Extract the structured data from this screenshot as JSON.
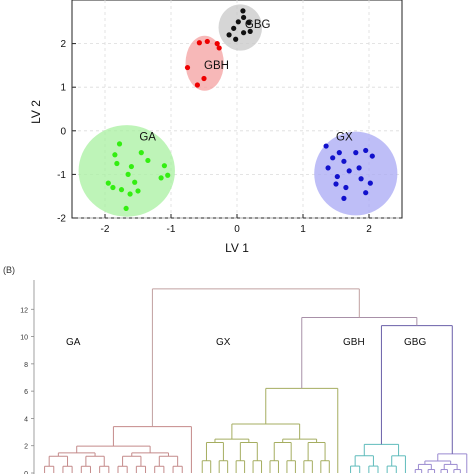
{
  "chart_data": [
    {
      "type": "scatter",
      "title": "",
      "xlabel": "LV 1",
      "ylabel": "LV 2",
      "xlim": [
        -2.5,
        2.5
      ],
      "ylim": [
        -2.0,
        3.0
      ],
      "x_ticks": [
        "-2",
        "-1",
        "0",
        "1",
        "2"
      ],
      "y_ticks": [
        "-2",
        "-1",
        "0",
        "1",
        "2"
      ],
      "grid": true,
      "groups": [
        {
          "label": "GBG",
          "point_color": "#111111",
          "ellipse_color": "#c8c8c8",
          "ellipse": {
            "cx": 0.05,
            "cy": 2.37,
            "rx": 0.33,
            "ry": 0.53
          },
          "points": [
            [
              0.09,
              2.75
            ],
            [
              0.1,
              2.6
            ],
            [
              0.02,
              2.5
            ],
            [
              0.18,
              2.48
            ],
            [
              -0.05,
              2.35
            ],
            [
              0.1,
              2.25
            ],
            [
              0.2,
              2.28
            ],
            [
              -0.12,
              2.2
            ],
            [
              -0.02,
              2.1
            ]
          ]
        },
        {
          "label": "GBH",
          "point_color": "#ee0000",
          "ellipse_color": "#f4a0a0",
          "ellipse": {
            "cx": -0.49,
            "cy": 1.55,
            "rx": 0.29,
            "ry": 0.63
          },
          "points": [
            [
              -0.3,
              2.0
            ],
            [
              -0.45,
              2.05
            ],
            [
              -0.57,
              2.02
            ],
            [
              -0.27,
              1.9
            ],
            [
              -0.75,
              1.45
            ],
            [
              -0.5,
              1.2
            ],
            [
              -0.6,
              1.05
            ]
          ]
        },
        {
          "label": "GA",
          "point_color": "#33ee11",
          "ellipse_color": "#a8f0a0",
          "ellipse": {
            "cx": -1.67,
            "cy": -0.92,
            "rx": 0.73,
            "ry": 1.05
          },
          "points": [
            [
              -1.78,
              -0.3
            ],
            [
              -1.85,
              -0.55
            ],
            [
              -1.45,
              -0.5
            ],
            [
              -1.82,
              -0.75
            ],
            [
              -1.35,
              -0.68
            ],
            [
              -1.6,
              -0.82
            ],
            [
              -1.1,
              -0.8
            ],
            [
              -1.65,
              -1.0
            ],
            [
              -1.15,
              -1.08
            ],
            [
              -1.95,
              -1.2
            ],
            [
              -1.55,
              -1.18
            ],
            [
              -1.05,
              -1.02
            ],
            [
              -1.75,
              -1.35
            ],
            [
              -1.62,
              -1.45
            ],
            [
              -1.88,
              -1.3
            ],
            [
              -1.5,
              -1.38
            ],
            [
              -1.68,
              -1.78
            ]
          ]
        },
        {
          "label": "GX",
          "point_color": "#1111cc",
          "ellipse_color": "#a8a8f4",
          "ellipse": {
            "cx": 1.8,
            "cy": -0.98,
            "rx": 0.63,
            "ry": 0.96
          },
          "points": [
            [
              1.35,
              -0.35
            ],
            [
              1.55,
              -0.5
            ],
            [
              1.8,
              -0.5
            ],
            [
              1.95,
              -0.45
            ],
            [
              1.45,
              -0.62
            ],
            [
              1.62,
              -0.7
            ],
            [
              2.05,
              -0.58
            ],
            [
              1.38,
              -0.85
            ],
            [
              1.7,
              -0.92
            ],
            [
              1.85,
              -0.85
            ],
            [
              1.52,
              -1.05
            ],
            [
              1.88,
              -1.1
            ],
            [
              2.02,
              -1.2
            ],
            [
              1.65,
              -1.3
            ],
            [
              1.5,
              -1.22
            ],
            [
              1.95,
              -1.42
            ],
            [
              1.62,
              -1.55
            ]
          ]
        }
      ]
    },
    {
      "type": "dendrogram",
      "panel_label": "(B)",
      "title": "",
      "ylim": [
        0,
        14
      ],
      "y_ticks": [
        "0",
        "2",
        "4",
        "6",
        "8",
        "10",
        "12"
      ],
      "root_height": 13.5,
      "clusters": [
        {
          "label": "GA",
          "color": "#c48a8a",
          "merge_height": 3.4,
          "leaf_count": 17
        },
        {
          "label": "GX",
          "color": "#a5ad60",
          "merge_height": 6.2,
          "leaf_count": 17
        },
        {
          "label": "GBH",
          "color": "#5fbcbc",
          "merge_height": 2.1,
          "leaf_count": 7
        },
        {
          "label": "GBG",
          "color": "#9a8ad0",
          "merge_height": 1.4,
          "leaf_count": 9
        }
      ],
      "internal_merges": [
        {
          "joins": [
            "GX",
            "GBH+GBG"
          ],
          "height": 11.4
        },
        {
          "joins": [
            "GBH",
            "GBG"
          ],
          "height": 10.8
        },
        {
          "joins": [
            "GA",
            "GX+GBH+GBG"
          ],
          "height": 13.5
        }
      ],
      "colors": {
        "root": "#c0a0a0",
        "upper": "#a890a8"
      }
    }
  ]
}
